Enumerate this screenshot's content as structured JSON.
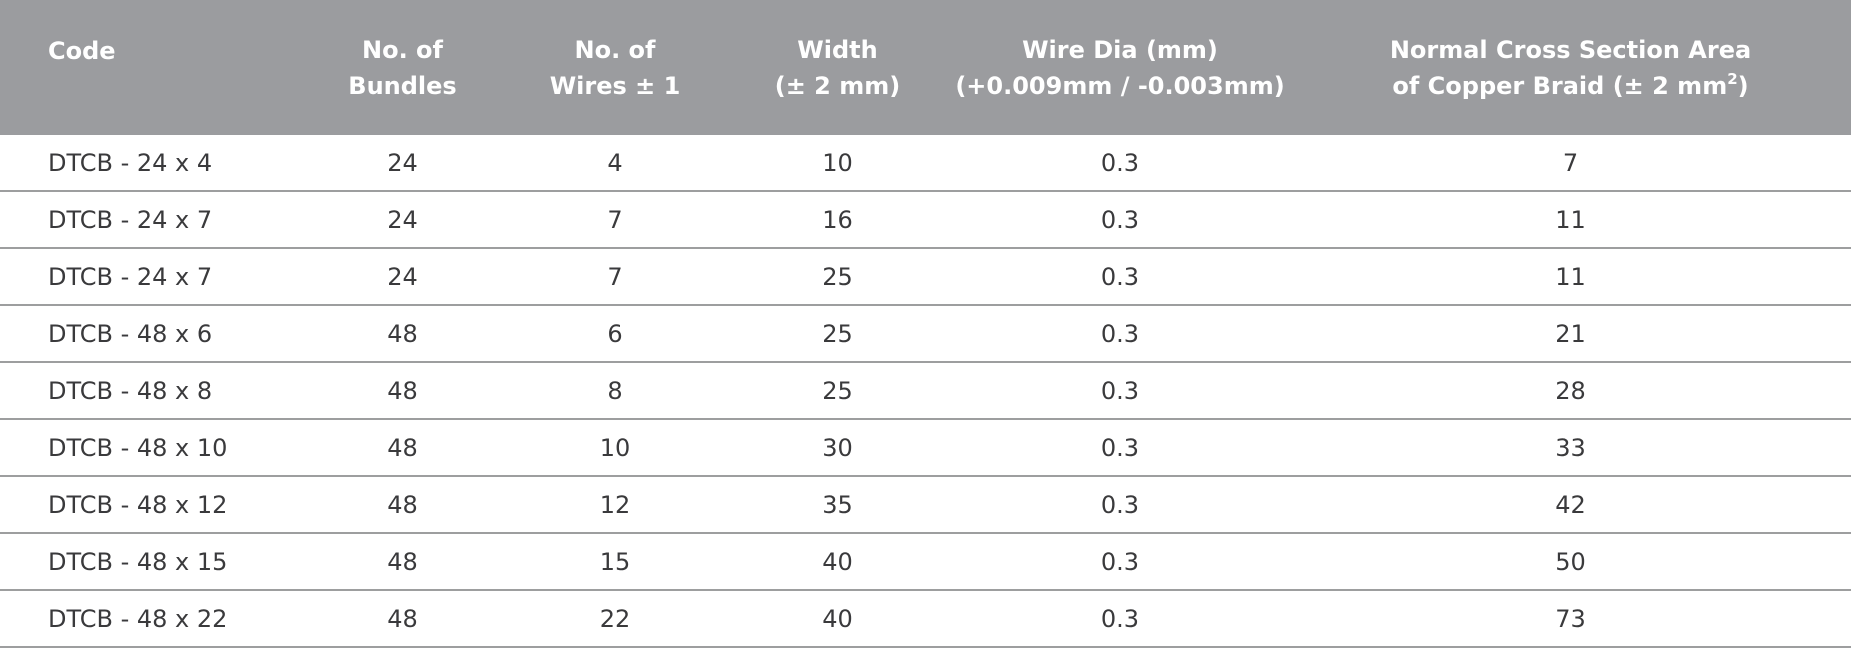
{
  "table": {
    "headers": [
      {
        "line1": "Code",
        "line2": ""
      },
      {
        "line1": "No. of",
        "line2": "Bundles"
      },
      {
        "line1": "No. of",
        "line2": "Wires ± 1"
      },
      {
        "line1": "Width",
        "line2": "(± 2 mm)"
      },
      {
        "line1": "Wire Dia (mm)",
        "line2": "(+0.009mm / -0.003mm)"
      },
      {
        "line1": "Normal Cross Section Area",
        "line2": "of Copper Braid (± 2 mm",
        "sup": "2",
        "line2_end": ")"
      }
    ],
    "rows": [
      [
        "DTCB - 24 x 4",
        "24",
        "4",
        "10",
        "0.3",
        "7"
      ],
      [
        "DTCB - 24 x 7",
        "24",
        "7",
        "16",
        "0.3",
        "11"
      ],
      [
        "DTCB - 24 x 7",
        "24",
        "7",
        "25",
        "0.3",
        "11"
      ],
      [
        "DTCB - 48 x 6",
        "48",
        "6",
        "25",
        "0.3",
        "21"
      ],
      [
        "DTCB - 48 x 8",
        "48",
        "8",
        "25",
        "0.3",
        "28"
      ],
      [
        "DTCB - 48 x 10",
        "48",
        "10",
        "30",
        "0.3",
        "33"
      ],
      [
        "DTCB - 48 x 12",
        "48",
        "12",
        "35",
        "0.3",
        "42"
      ],
      [
        "DTCB - 48 x 15",
        "48",
        "15",
        "40",
        "0.3",
        "50"
      ],
      [
        "DTCB - 48 x 22",
        "48",
        "22",
        "40",
        "0.3",
        "73"
      ]
    ]
  }
}
